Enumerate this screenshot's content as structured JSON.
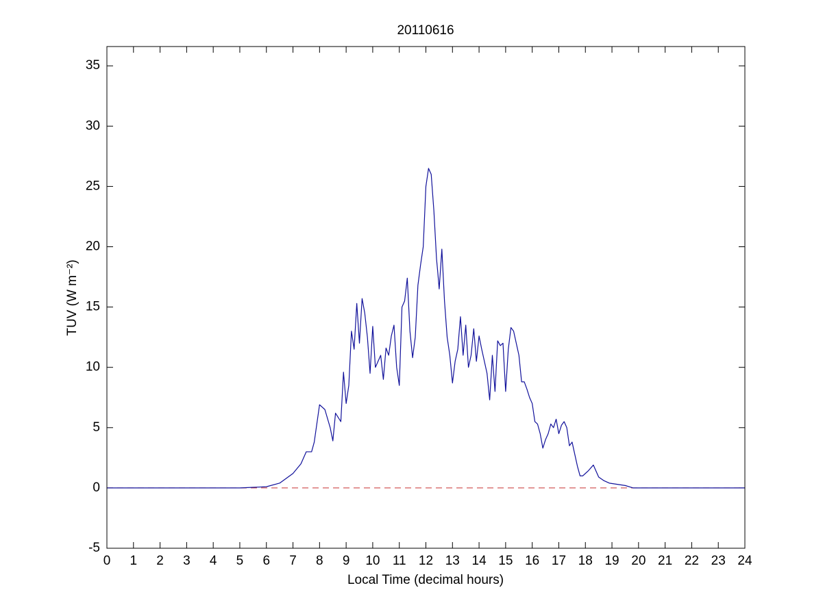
{
  "chart_data": {
    "type": "line",
    "title": "20110616",
    "xlabel": "Local Time (decimal hours)",
    "ylabel": "TUV (W m⁻²)",
    "x": [
      0,
      5,
      5.5,
      6,
      6.5,
      7,
      7.3,
      7.5,
      7.7,
      7.8,
      8.0,
      8.2,
      8.4,
      8.5,
      8.6,
      8.8,
      8.9,
      9.0,
      9.1,
      9.2,
      9.3,
      9.4,
      9.5,
      9.6,
      9.7,
      9.8,
      9.9,
      10.0,
      10.1,
      10.3,
      10.4,
      10.5,
      10.6,
      10.7,
      10.8,
      10.9,
      11.0,
      11.1,
      11.2,
      11.3,
      11.4,
      11.5,
      11.6,
      11.7,
      11.8,
      11.9,
      12.0,
      12.1,
      12.2,
      12.3,
      12.4,
      12.45,
      12.5,
      12.6,
      12.7,
      12.8,
      12.9,
      13.0,
      13.1,
      13.2,
      13.3,
      13.4,
      13.5,
      13.6,
      13.7,
      13.8,
      13.9,
      14.0,
      14.1,
      14.2,
      14.3,
      14.4,
      14.5,
      14.6,
      14.7,
      14.8,
      14.9,
      15.0,
      15.1,
      15.2,
      15.3,
      15.4,
      15.5,
      15.6,
      15.7,
      15.8,
      15.9,
      16.0,
      16.1,
      16.2,
      16.3,
      16.4,
      16.5,
      16.6,
      16.7,
      16.8,
      16.9,
      17.0,
      17.1,
      17.2,
      17.3,
      17.4,
      17.5,
      17.6,
      17.7,
      17.8,
      17.9,
      18.0,
      18.1,
      18.3,
      18.4,
      18.5,
      18.7,
      18.9,
      19.2,
      19.5,
      19.8,
      24
    ],
    "series": [
      {
        "name": "TUV",
        "color": "#10109a",
        "values": [
          0,
          0,
          0.05,
          0.1,
          0.4,
          1.2,
          2.0,
          3.0,
          3.0,
          3.8,
          6.9,
          6.5,
          5.0,
          3.9,
          6.2,
          5.5,
          9.6,
          7.0,
          8.5,
          13.0,
          11.5,
          15.3,
          12.0,
          15.7,
          14.5,
          12.5,
          9.5,
          13.4,
          10.0,
          11.0,
          9.0,
          11.6,
          11.0,
          12.6,
          13.5,
          10.0,
          8.5,
          15.0,
          15.5,
          17.4,
          13.0,
          10.8,
          12.5,
          16.8,
          18.5,
          20.0,
          25.0,
          26.5,
          26.0,
          23.0,
          19.0,
          17.8,
          16.5,
          19.8,
          15.5,
          12.5,
          11.0,
          8.7,
          10.5,
          11.5,
          14.2,
          11.0,
          13.5,
          10.0,
          11.0,
          13.2,
          10.5,
          12.6,
          11.5,
          10.5,
          9.5,
          7.3,
          11.0,
          8.0,
          12.2,
          11.8,
          12.0,
          8.0,
          11.5,
          13.3,
          13.0,
          12.0,
          11.0,
          8.8,
          8.8,
          8.2,
          7.5,
          7.0,
          5.5,
          5.3,
          4.5,
          3.3,
          4.0,
          4.5,
          5.3,
          5.0,
          5.7,
          4.5,
          5.2,
          5.5,
          5.0,
          3.5,
          3.8,
          2.8,
          1.8,
          1.0,
          1.0,
          1.2,
          1.4,
          1.9,
          1.4,
          0.9,
          0.6,
          0.4,
          0.3,
          0.2,
          0.0,
          0
        ]
      }
    ],
    "hlines": [
      {
        "y": 0,
        "color": "#c83232",
        "style": "dashed"
      }
    ],
    "xlim": [
      0,
      24
    ],
    "xticks": [
      0,
      1,
      2,
      3,
      4,
      5,
      6,
      7,
      8,
      9,
      10,
      11,
      12,
      13,
      14,
      15,
      16,
      17,
      18,
      19,
      20,
      21,
      22,
      23,
      24
    ],
    "ylim": [
      -5,
      36.6
    ],
    "yticks": [
      -5,
      0,
      5,
      10,
      15,
      20,
      25,
      30,
      35
    ],
    "grid": false
  }
}
